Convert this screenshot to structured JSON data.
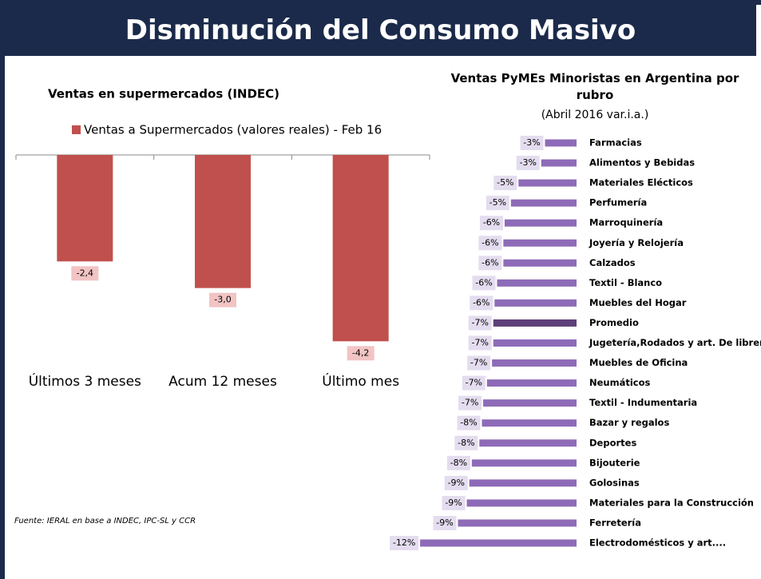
{
  "page": {
    "title": "Disminución del Consumo Masivo",
    "source": "Fuente: IERAL en base a INDEC, IPC-SL y CCR"
  },
  "chart_data": [
    {
      "type": "bar",
      "title": "Ventas en supermercados (INDEC)",
      "categories": [
        "Últimos 3 meses",
        "Acum 12 meses",
        "Último mes"
      ],
      "series": [
        {
          "name": "Ventas a Supermercados (valores reales) - Feb 16",
          "color": "#c0504d",
          "values": [
            -2.4,
            -3.0,
            -4.2
          ],
          "value_labels": [
            "-2,4",
            "-3,0",
            "-4,2"
          ]
        }
      ],
      "ylim": [
        -4.5,
        0
      ]
    },
    {
      "type": "hbar",
      "title": "Ventas PyMEs Minoristas en Argentina por rubro",
      "subtitle": "(Abril 2016 var.i.a.)",
      "categories": [
        "Farmacias",
        "Alimentos y Bebidas",
        "Materiales Elécticos",
        "Perfumería",
        "Marroquinería",
        "Joyería y Relojería",
        "Calzados",
        "Textil - Blanco",
        "Muebles del Hogar",
        "Promedio",
        "Jugetería,Rodados y art. De librería",
        "Muebles de Oficina",
        "Neumáticos",
        "Textil - Indumentaria",
        "Bazar y regalos",
        "Deportes",
        "Bijouterie",
        "Golosinas",
        "Materiales para la Construcción",
        "Ferretería",
        "Electrodomésticos y art...."
      ],
      "values": [
        -2.5,
        -2.8,
        -4.6,
        -5.2,
        -5.7,
        -5.8,
        -5.8,
        -6.3,
        -6.5,
        -6.6,
        -6.6,
        -6.7,
        -7.1,
        -7.4,
        -7.5,
        -7.7,
        -8.3,
        -8.5,
        -8.7,
        -9.4,
        -12.4
      ],
      "value_labels": [
        "-3%",
        "-3%",
        "-5%",
        "-5%",
        "-6%",
        "-6%",
        "-6%",
        "-6%",
        "-6%",
        "-7%",
        "-7%",
        "-7%",
        "-7%",
        "-7%",
        "-8%",
        "-8%",
        "-8%",
        "-9%",
        "-9%",
        "-9%",
        "-12%"
      ],
      "colors": [
        "#8e6bb8",
        "#8e6bb8",
        "#8e6bb8",
        "#8e6bb8",
        "#8e6bb8",
        "#8e6bb8",
        "#8e6bb8",
        "#8e6bb8",
        "#8e6bb8",
        "#5e3f7a",
        "#8e6bb8",
        "#8e6bb8",
        "#8e6bb8",
        "#8e6bb8",
        "#8e6bb8",
        "#8e6bb8",
        "#8e6bb8",
        "#8e6bb8",
        "#8e6bb8",
        "#8e6bb8",
        "#8e6bb8"
      ],
      "xlim": [
        -15,
        0
      ]
    }
  ]
}
